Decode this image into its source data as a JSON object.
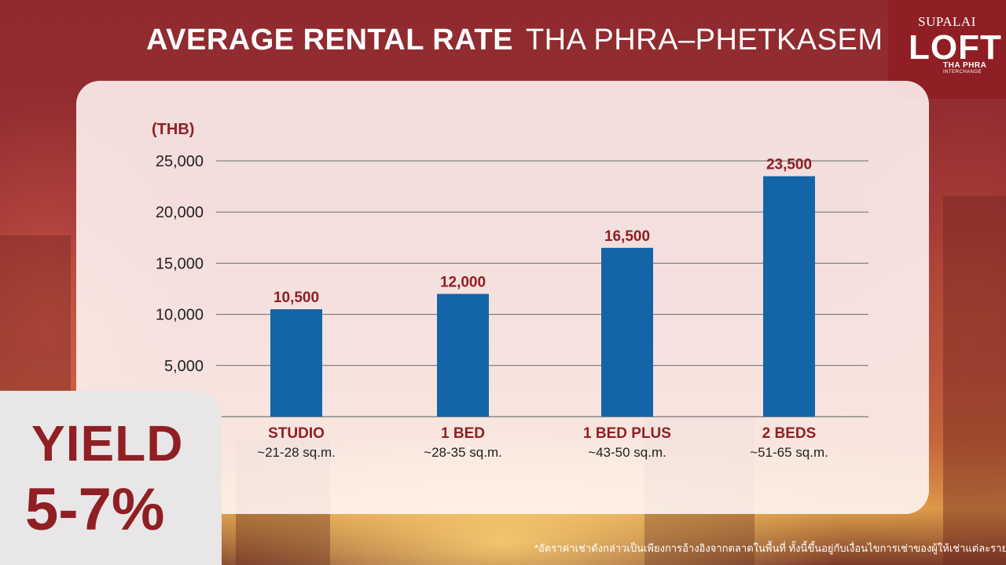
{
  "header": {
    "title_bold": "AVERAGE RENTAL RATE",
    "title_light": "THA PHRA–PHETKASEM"
  },
  "logo": {
    "brand": "SUPALAI",
    "name": "LOFT",
    "sub": "THA PHRA",
    "sub2": "INTERCHANGE"
  },
  "colors": {
    "brand_red": "#8f1f24",
    "bar_blue": "#1464a8"
  },
  "chart_data": {
    "type": "bar",
    "ylabel": "(THB)",
    "ylim": [
      0,
      25000
    ],
    "yticks": [
      5000,
      10000,
      15000,
      20000,
      25000
    ],
    "ytick_labels": [
      "5,000",
      "10,000",
      "15,000",
      "20,000",
      "25,000"
    ],
    "grid": true,
    "categories": [
      "STUDIO",
      "1 BED",
      "1 BED PLUS",
      "2 BEDS"
    ],
    "category_sizes": [
      "~21-28 sq.m.",
      "~28-35 sq.m.",
      "~43-50 sq.m.",
      "~51-65 sq.m."
    ],
    "values": [
      10500,
      12000,
      16500,
      23500
    ],
    "value_labels": [
      "10,500",
      "12,000",
      "16,500",
      "23,500"
    ]
  },
  "yield": {
    "label": "YIELD",
    "value": "5-7%"
  },
  "footnote": "*อัตราค่าเช่าดังกล่าวเป็นเพียงการอ้างอิงจากตลาดในพื้นที่ ทั้งนี้ขึ้นอยู่กับเงื่อนไขการเช่าของผู้ให้เช่าแต่ละราย"
}
